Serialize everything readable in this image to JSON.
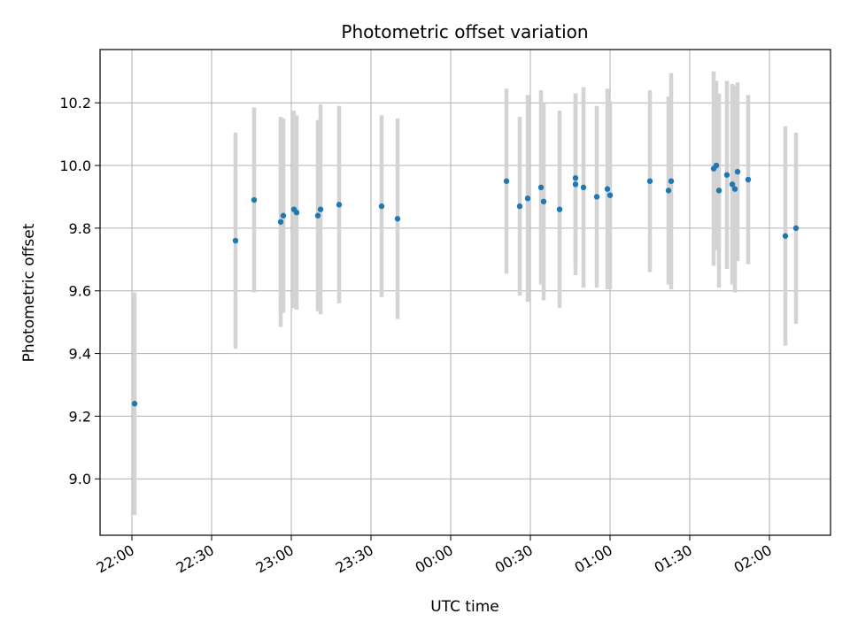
{
  "chart_data": {
    "type": "scatter",
    "title": "Photometric offset variation",
    "xlabel": "UTC time",
    "ylabel": "Photometric offset",
    "x_axis": {
      "kind": "time",
      "range": [
        "21:48",
        "02:23"
      ],
      "ticks": [
        "22:00",
        "22:30",
        "23:00",
        "23:30",
        "00:00",
        "00:30",
        "01:00",
        "01:30",
        "02:00"
      ]
    },
    "y_axis": {
      "range": [
        8.82,
        10.37
      ],
      "ticks": [
        "9.0",
        "9.2",
        "9.4",
        "9.6",
        "9.8",
        "10.0",
        "10.2"
      ]
    },
    "grid": true,
    "errorbar_color": "#d3d3d3",
    "marker_color": "#1f77b4",
    "points": [
      {
        "x": "22:01",
        "y": 9.24,
        "err": 0.355
      },
      {
        "x": "22:39",
        "y": 9.76,
        "err": 0.345
      },
      {
        "x": "22:46",
        "y": 9.89,
        "err": 0.295
      },
      {
        "x": "22:56",
        "y": 9.82,
        "err": 0.335
      },
      {
        "x": "22:57",
        "y": 9.84,
        "err": 0.31
      },
      {
        "x": "23:01",
        "y": 9.86,
        "err": 0.315
      },
      {
        "x": "23:02",
        "y": 9.85,
        "err": 0.31
      },
      {
        "x": "23:10",
        "y": 9.84,
        "err": 0.305
      },
      {
        "x": "23:11",
        "y": 9.86,
        "err": 0.335
      },
      {
        "x": "23:18",
        "y": 9.875,
        "err": 0.315
      },
      {
        "x": "23:34",
        "y": 9.87,
        "err": 0.29
      },
      {
        "x": "23:40",
        "y": 9.83,
        "err": 0.32
      },
      {
        "x": "00:21",
        "y": 9.95,
        "err": 0.295
      },
      {
        "x": "00:26",
        "y": 9.87,
        "err": 0.285
      },
      {
        "x": "00:29",
        "y": 9.895,
        "err": 0.33
      },
      {
        "x": "00:34",
        "y": 9.93,
        "err": 0.31
      },
      {
        "x": "00:35",
        "y": 9.885,
        "err": 0.315
      },
      {
        "x": "00:41",
        "y": 9.86,
        "err": 0.315
      },
      {
        "x": "00:47",
        "y": 9.94,
        "err": 0.29
      },
      {
        "x": "00:47",
        "y": 9.96,
        "err": 0.27
      },
      {
        "x": "00:50",
        "y": 9.93,
        "err": 0.32
      },
      {
        "x": "00:55",
        "y": 9.9,
        "err": 0.29
      },
      {
        "x": "00:59",
        "y": 9.925,
        "err": 0.32
      },
      {
        "x": "01:00",
        "y": 9.905,
        "err": 0.3
      },
      {
        "x": "01:15",
        "y": 9.95,
        "err": 0.29
      },
      {
        "x": "01:22",
        "y": 9.92,
        "err": 0.3
      },
      {
        "x": "01:23",
        "y": 9.95,
        "err": 0.345
      },
      {
        "x": "01:39",
        "y": 9.99,
        "err": 0.31
      },
      {
        "x": "01:40",
        "y": 10.0,
        "err": 0.27
      },
      {
        "x": "01:41",
        "y": 9.92,
        "err": 0.31
      },
      {
        "x": "01:44",
        "y": 9.97,
        "err": 0.3
      },
      {
        "x": "01:46",
        "y": 9.94,
        "err": 0.32
      },
      {
        "x": "01:47",
        "y": 9.925,
        "err": 0.33
      },
      {
        "x": "01:48",
        "y": 9.98,
        "err": 0.285
      },
      {
        "x": "01:52",
        "y": 9.955,
        "err": 0.27
      },
      {
        "x": "02:06",
        "y": 9.775,
        "err": 0.35
      },
      {
        "x": "02:10",
        "y": 9.8,
        "err": 0.305
      }
    ]
  }
}
